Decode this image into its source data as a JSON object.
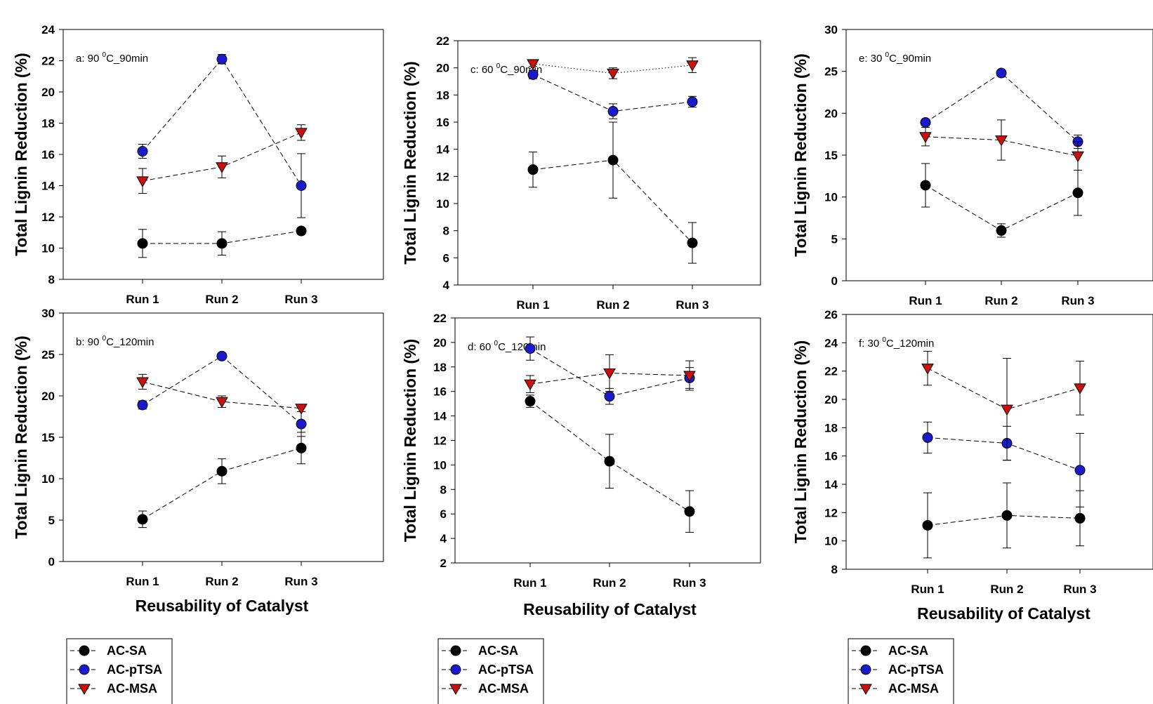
{
  "colors": {
    "AC-SA": "#000000",
    "AC-pTSA": "#1a1acc",
    "AC-MSA": "#cc1010",
    "line": "#000000"
  },
  "legend": [
    "AC-SA",
    "AC-pTSA",
    "AC-MSA"
  ],
  "chart_data": [
    {
      "type": "line",
      "panel": "a",
      "annotation": {
        "prefix": "a: 90 ",
        "sup": "0",
        "suffix": "C_90min"
      },
      "ylabel": "Total Lignin Reduction (%)",
      "xlabel": "",
      "categories": [
        "Run 1",
        "Run 2",
        "Run 3"
      ],
      "ylim": [
        8,
        24
      ],
      "yticks": [
        8,
        10,
        12,
        14,
        16,
        18,
        20,
        22,
        24
      ],
      "series": [
        {
          "name": "AC-SA",
          "marker": "circle",
          "dash": "dashed",
          "values": [
            10.3,
            10.3,
            11.1
          ],
          "err": [
            0.9,
            0.75,
            0.2
          ]
        },
        {
          "name": "AC-pTSA",
          "marker": "circle",
          "dash": "dashed",
          "values": [
            16.2,
            22.1,
            14.0
          ],
          "err": [
            0.45,
            0.3,
            2.05
          ]
        },
        {
          "name": "AC-MSA",
          "marker": "triangle",
          "dash": "dashed",
          "values": [
            14.3,
            15.2,
            17.4
          ],
          "err": [
            0.8,
            0.7,
            0.5
          ]
        }
      ]
    },
    {
      "type": "line",
      "panel": "b",
      "annotation": {
        "prefix": "b: 90 ",
        "sup": "0",
        "suffix": "C_120min"
      },
      "ylabel": "Total Lignin Reduction (%)",
      "xlabel": "Reusability of Catalyst",
      "categories": [
        "Run 1",
        "Run 2",
        "Run 3"
      ],
      "ylim": [
        0,
        30
      ],
      "yticks": [
        0,
        5,
        10,
        15,
        20,
        25,
        30
      ],
      "series": [
        {
          "name": "AC-SA",
          "marker": "circle",
          "dash": "dashed",
          "values": [
            5.1,
            10.9,
            13.7
          ],
          "err": [
            1.0,
            1.5,
            1.9
          ]
        },
        {
          "name": "AC-pTSA",
          "marker": "circle",
          "dash": "dashed",
          "values": [
            18.9,
            24.8,
            16.6
          ],
          "err": [
            0.5,
            0.3,
            1.5
          ]
        },
        {
          "name": "AC-MSA",
          "marker": "triangle",
          "dash": "dashed",
          "values": [
            21.7,
            19.3,
            18.5
          ],
          "err": [
            0.9,
            0.7,
            0.4
          ]
        }
      ]
    },
    {
      "type": "line",
      "panel": "c",
      "annotation": {
        "prefix": "c: 60 ",
        "sup": "0",
        "suffix": "C_90min"
      },
      "ylabel": "Total Lignin Reduction (%)",
      "xlabel": "",
      "categories": [
        "Run 1",
        "Run 2",
        "Run 3"
      ],
      "ylim": [
        4,
        22
      ],
      "yticks": [
        4,
        6,
        8,
        10,
        12,
        14,
        16,
        18,
        20,
        22
      ],
      "series": [
        {
          "name": "AC-SA",
          "marker": "circle",
          "dash": "dashed",
          "values": [
            12.5,
            13.2,
            7.1
          ],
          "err": [
            1.3,
            2.8,
            1.5
          ]
        },
        {
          "name": "AC-pTSA",
          "marker": "circle",
          "dash": "dashed",
          "values": [
            19.5,
            16.8,
            17.5
          ],
          "err": [
            0.3,
            0.55,
            0.4
          ]
        },
        {
          "name": "AC-MSA",
          "marker": "triangle",
          "dash": "dotted",
          "values": [
            20.3,
            19.6,
            20.2
          ],
          "err": [
            0.2,
            0.4,
            0.55
          ]
        }
      ]
    },
    {
      "type": "line",
      "panel": "d",
      "annotation": {
        "prefix": "d: 60 ",
        "sup": "0",
        "suffix": "C_120min"
      },
      "ylabel": "Total Lignin Reduction (%)",
      "xlabel": "Reusability of Catalyst",
      "categories": [
        "Run 1",
        "Run 2",
        "Run 3"
      ],
      "ylim": [
        2,
        22
      ],
      "yticks": [
        2,
        4,
        6,
        8,
        10,
        12,
        14,
        16,
        18,
        20,
        22
      ],
      "series": [
        {
          "name": "AC-SA",
          "marker": "circle",
          "dash": "dashed",
          "values": [
            15.2,
            10.3,
            6.2
          ],
          "err": [
            0.5,
            2.2,
            1.7
          ]
        },
        {
          "name": "AC-pTSA",
          "marker": "circle",
          "dash": "dashed",
          "values": [
            19.5,
            15.6,
            17.1
          ],
          "err": [
            0.95,
            0.65,
            0.85
          ]
        },
        {
          "name": "AC-MSA",
          "marker": "triangle",
          "dash": "dashed",
          "values": [
            16.6,
            17.5,
            17.3
          ],
          "err": [
            0.7,
            1.5,
            1.2
          ]
        }
      ]
    },
    {
      "type": "line",
      "panel": "e",
      "annotation": {
        "prefix": "e: 30 ",
        "sup": "0",
        "suffix": "C_90min"
      },
      "ylabel": "Total Lignin Reduction (%)",
      "xlabel": "",
      "categories": [
        "Run 1",
        "Run 2",
        "Run 3"
      ],
      "ylim": [
        0,
        30
      ],
      "yticks": [
        0,
        5,
        10,
        15,
        20,
        25,
        30
      ],
      "series": [
        {
          "name": "AC-SA",
          "marker": "circle",
          "dash": "dashed",
          "values": [
            11.4,
            6.0,
            10.5
          ],
          "err": [
            2.6,
            0.8,
            2.7
          ]
        },
        {
          "name": "AC-pTSA",
          "marker": "circle",
          "dash": "dashed",
          "values": [
            18.9,
            24.8,
            16.6
          ],
          "err": [
            0.3,
            0.2,
            0.8
          ]
        },
        {
          "name": "AC-MSA",
          "marker": "triangle",
          "dash": "dashed",
          "values": [
            17.2,
            16.8,
            14.9
          ],
          "err": [
            1.1,
            2.4,
            1.7
          ]
        }
      ]
    },
    {
      "type": "line",
      "panel": "f",
      "annotation": {
        "prefix": "f: 30 ",
        "sup": "0",
        "suffix": "C_120min"
      },
      "ylabel": "Total Lignin Reduction (%)",
      "xlabel": "Reusability of Catalyst",
      "categories": [
        "Run 1",
        "Run 2",
        "Run 3"
      ],
      "ylim": [
        8,
        26
      ],
      "yticks": [
        8,
        10,
        12,
        14,
        16,
        18,
        20,
        22,
        24,
        26
      ],
      "series": [
        {
          "name": "AC-SA",
          "marker": "circle",
          "dash": "dashed",
          "values": [
            11.1,
            11.8,
            11.6
          ],
          "err": [
            2.3,
            2.3,
            1.95
          ]
        },
        {
          "name": "AC-pTSA",
          "marker": "circle",
          "dash": "dashed",
          "values": [
            17.3,
            16.9,
            15.0
          ],
          "err": [
            1.1,
            1.2,
            2.6
          ]
        },
        {
          "name": "AC-MSA",
          "marker": "triangle",
          "dash": "dashed",
          "values": [
            22.2,
            19.3,
            20.8
          ],
          "err": [
            1.2,
            3.6,
            1.9
          ]
        }
      ]
    }
  ]
}
